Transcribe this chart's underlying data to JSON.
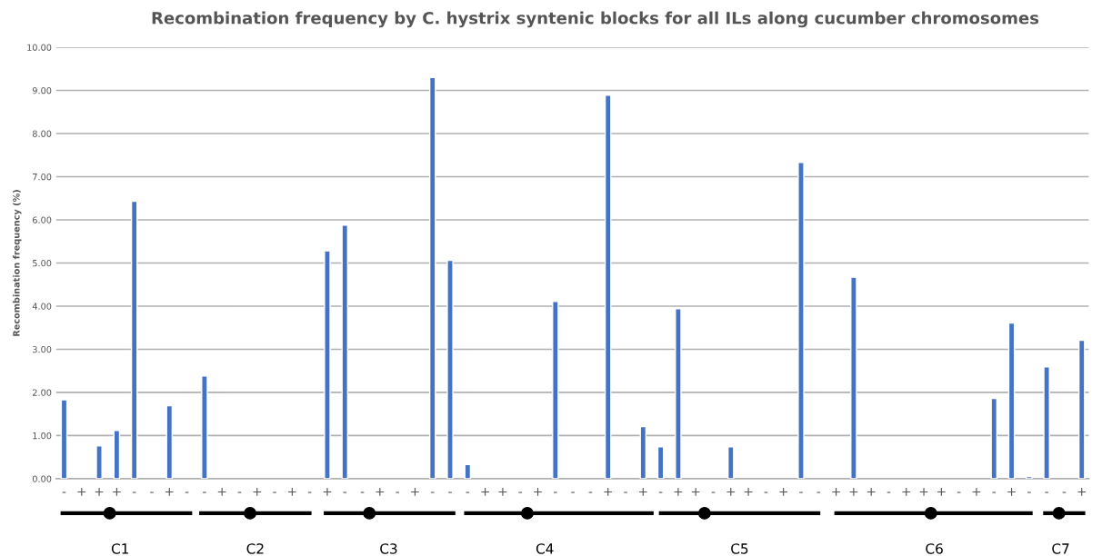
{
  "chart_data": {
    "type": "bar",
    "title": "Recombination frequency by C. hystrix syntenic blocks for all ILs along cucumber chromosomes",
    "ylabel": "Recombination frequency (%)",
    "categories": [
      "-",
      "+",
      "+",
      "+",
      "-",
      "-",
      "+",
      "-",
      "-",
      "+",
      "-",
      "+",
      "-",
      "+",
      "-",
      "+",
      "-",
      "-",
      "+",
      "-",
      "+",
      "-",
      "-",
      "-",
      "+",
      "+",
      "-",
      "+",
      "-",
      "-",
      "-",
      "+",
      "-",
      "+",
      "-",
      "+",
      "+",
      "-",
      "+",
      "+",
      "-",
      "+",
      "-",
      "-",
      "+",
      "+",
      "+",
      "-",
      "+",
      "+",
      "+",
      "-",
      "+",
      "-",
      "+",
      "-",
      "-",
      "-",
      "+"
    ],
    "values": [
      1.83,
      null,
      0.76,
      1.12,
      6.43,
      null,
      1.69,
      null,
      2.38,
      null,
      null,
      null,
      null,
      null,
      null,
      5.28,
      5.88,
      null,
      null,
      null,
      null,
      9.3,
      5.06,
      0.33,
      null,
      null,
      null,
      null,
      4.11,
      null,
      null,
      8.89,
      null,
      1.21,
      0.74,
      3.94,
      null,
      null,
      0.74,
      null,
      null,
      null,
      7.33,
      null,
      null,
      4.67,
      null,
      null,
      null,
      null,
      null,
      null,
      null,
      1.86,
      3.61,
      0.05,
      2.59,
      null,
      3.21
    ],
    "color": "#4472c4",
    "ylim": [
      0,
      10
    ],
    "yticks": [
      {
        "value": 0,
        "label": "0.00"
      },
      {
        "value": 1,
        "label": "1.00"
      },
      {
        "value": 2,
        "label": "2.00"
      },
      {
        "value": 3,
        "label": "3.00"
      },
      {
        "value": 4,
        "label": "4.00"
      },
      {
        "value": 5,
        "label": "5.00"
      },
      {
        "value": 6,
        "label": "6.00"
      },
      {
        "value": 7,
        "label": "7.00"
      },
      {
        "value": 8,
        "label": "8.00"
      },
      {
        "value": 9,
        "label": "9.00"
      },
      {
        "value": 10,
        "label": "10.00"
      }
    ],
    "grid": "y",
    "annotations": [
      "C1",
      "C2",
      "C3",
      "C4",
      "C5",
      "C6",
      "C7"
    ]
  }
}
